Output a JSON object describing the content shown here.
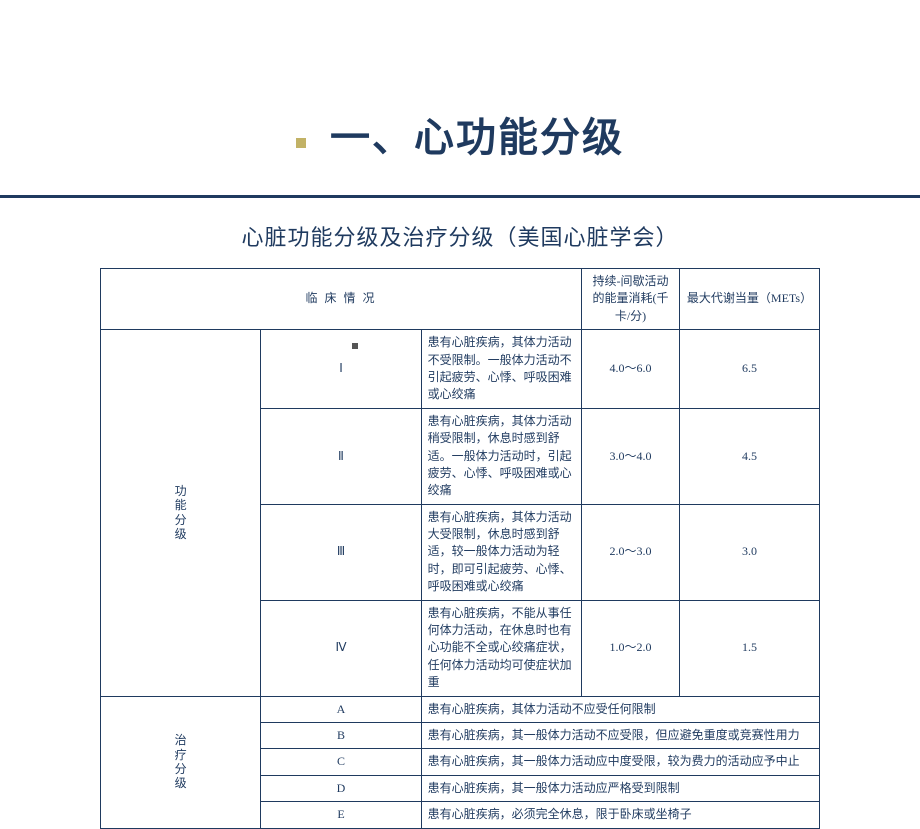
{
  "title": "一、心功能分级",
  "subtitle": "心脏功能分级及治疗分级（美国心脏学会）",
  "headers": {
    "clinical": "临 床 情 况",
    "energy": "持续-间歇活动的能量消耗(千卡/分)",
    "mets": "最大代谢当量（METs）"
  },
  "group1_label": "功能分级",
  "group2_label": "治疗分级",
  "functional": [
    {
      "level": "Ⅰ",
      "desc": "患有心脏疾病，其体力活动不受限制。一般体力活动不引起疲劳、心悸、呼吸困难或心绞痛",
      "energy": "4.0～6.0",
      "mets": "6.5"
    },
    {
      "level": "Ⅱ",
      "desc": "患有心脏疾病，其体力活动稍受限制，休息时感到舒适。一般体力活动时，引起疲劳、心悸、呼吸困难或心绞痛",
      "energy": "3.0～4.0",
      "mets": "4.5"
    },
    {
      "level": "Ⅲ",
      "desc": "患有心脏疾病，其体力活动大受限制，休息时感到舒适，较一般体力活动为轻时，即可引起疲劳、心悸、呼吸困难或心绞痛",
      "energy": "2.0～3.0",
      "mets": "3.0"
    },
    {
      "level": "Ⅳ",
      "desc": "患有心脏疾病，不能从事任何体力活动，在休息时也有心功能不全或心绞痛症状，任何体力活动均可使症状加重",
      "energy": "1.0～2.0",
      "mets": "1.5"
    }
  ],
  "therapeutic": [
    {
      "level": "A",
      "desc": "患有心脏疾病，其体力活动不应受任何限制"
    },
    {
      "level": "B",
      "desc": "患有心脏疾病，其一般体力活动不应受限，但应避免重度或竞赛性用力"
    },
    {
      "level": "C",
      "desc": "患有心脏疾病，其一般体力活动应中度受限，较为费力的活动应予中止"
    },
    {
      "level": "D",
      "desc": "患有心脏疾病，其一般体力活动应严格受到限制"
    },
    {
      "level": "E",
      "desc": "患有心脏疾病，必须完全休息，限于卧床或坐椅子"
    }
  ],
  "g1_chars": [
    "功",
    "能",
    "分",
    "级"
  ],
  "g2_chars": [
    "治",
    "疗",
    "分",
    "级"
  ]
}
